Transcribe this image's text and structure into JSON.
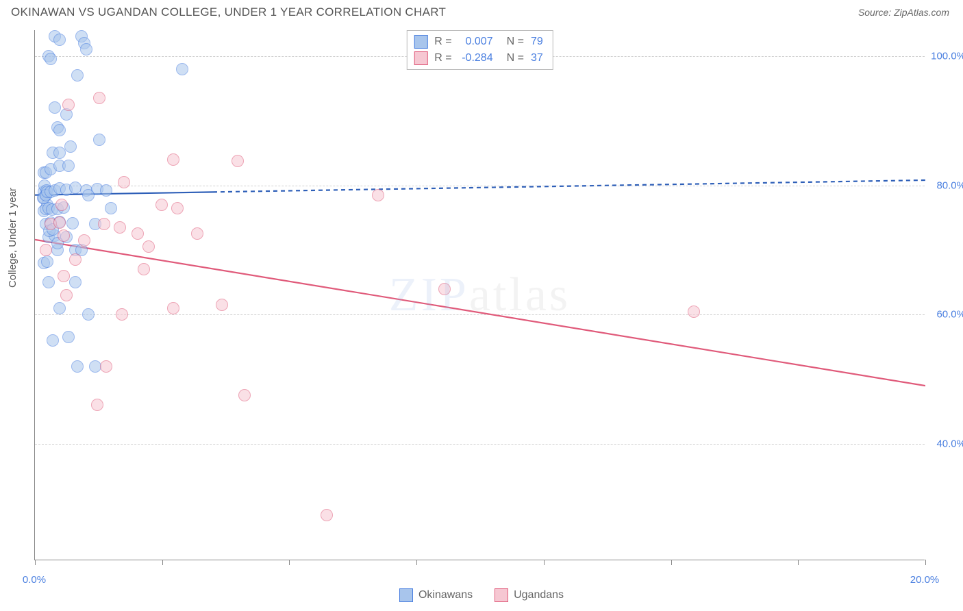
{
  "title": "OKINAWAN VS UGANDAN COLLEGE, UNDER 1 YEAR CORRELATION CHART",
  "source": "Source: ZipAtlas.com",
  "ylabel": "College, Under 1 year",
  "watermark_parts": [
    "ZIP",
    "atlas"
  ],
  "watermark_colors": [
    "#9cb8e6",
    "#c0c0c0"
  ],
  "chart": {
    "type": "scatter",
    "background_color": "#ffffff",
    "grid_color": "#d0d0d0",
    "axis_color": "#888888",
    "axis_label_color": "#555555",
    "tick_label_color": "#4a7fe0",
    "tick_fontsize": 15,
    "label_fontsize": 15,
    "title_fontsize": 17,
    "xlim": [
      0,
      20
    ],
    "ylim": [
      22,
      104
    ],
    "x_ticks": [
      0,
      2.86,
      5.71,
      8.57,
      11.43,
      14.29,
      17.14,
      20
    ],
    "x_tick_labels": [
      "0.0%",
      "",
      "",
      "",
      "",
      "",
      "",
      "20.0%"
    ],
    "y_ticks": [
      40,
      60,
      80,
      100
    ],
    "y_tick_labels": [
      "40.0%",
      "60.0%",
      "80.0%",
      "100.0%"
    ],
    "marker_radius": 9,
    "marker_opacity": 0.55,
    "marker_stroke_width": 1.2,
    "series": [
      {
        "name": "Okinawans",
        "fill": "#a8c5ec",
        "stroke": "#4a7fe0",
        "trend": {
          "x0": 0,
          "y0": 78.5,
          "x1": 20,
          "y1": 80.8,
          "solid_until_x": 4.0,
          "color": "#2e5fb8",
          "width": 2.2,
          "dash": "6 5"
        },
        "R": "0.007",
        "N": "79",
        "points": [
          [
            0.18,
            78
          ],
          [
            0.2,
            79
          ],
          [
            0.22,
            80
          ],
          [
            0.24,
            78.5
          ],
          [
            0.26,
            79.2
          ],
          [
            0.2,
            82
          ],
          [
            0.28,
            77
          ],
          [
            0.3,
            100
          ],
          [
            0.35,
            99.5
          ],
          [
            0.45,
            103
          ],
          [
            0.55,
            102.5
          ],
          [
            1.05,
            103
          ],
          [
            1.1,
            102
          ],
          [
            1.15,
            101
          ],
          [
            0.95,
            97
          ],
          [
            0.45,
            92
          ],
          [
            0.7,
            91
          ],
          [
            0.5,
            89
          ],
          [
            0.55,
            88.5
          ],
          [
            0.4,
            85
          ],
          [
            0.55,
            85
          ],
          [
            0.8,
            86
          ],
          [
            1.45,
            87
          ],
          [
            0.25,
            82
          ],
          [
            0.35,
            82.5
          ],
          [
            0.55,
            83
          ],
          [
            0.75,
            83
          ],
          [
            0.2,
            78
          ],
          [
            0.24,
            78.5
          ],
          [
            0.28,
            79
          ],
          [
            0.35,
            79
          ],
          [
            0.45,
            79.2
          ],
          [
            0.55,
            79.5
          ],
          [
            0.7,
            79.3
          ],
          [
            0.9,
            79.6
          ],
          [
            1.15,
            79.2
          ],
          [
            1.4,
            79.4
          ],
          [
            1.6,
            79.2
          ],
          [
            1.2,
            78.5
          ],
          [
            0.2,
            76
          ],
          [
            0.24,
            76.3
          ],
          [
            0.3,
            76.5
          ],
          [
            0.38,
            76.2
          ],
          [
            0.5,
            76.4
          ],
          [
            0.65,
            76.6
          ],
          [
            0.25,
            74
          ],
          [
            0.35,
            74.2
          ],
          [
            0.55,
            74.3
          ],
          [
            0.85,
            74.1
          ],
          [
            1.35,
            74
          ],
          [
            1.7,
            76.5
          ],
          [
            0.3,
            72
          ],
          [
            0.45,
            72.2
          ],
          [
            0.7,
            72
          ],
          [
            0.5,
            70
          ],
          [
            0.9,
            70
          ],
          [
            1.05,
            70
          ],
          [
            0.2,
            68
          ],
          [
            0.28,
            68.2
          ],
          [
            0.32,
            73
          ],
          [
            0.4,
            73.2
          ],
          [
            0.5,
            71
          ],
          [
            0.3,
            65
          ],
          [
            0.9,
            65
          ],
          [
            1.2,
            60
          ],
          [
            0.55,
            61
          ],
          [
            0.4,
            56
          ],
          [
            0.75,
            56.5
          ],
          [
            0.95,
            52
          ],
          [
            1.35,
            52
          ],
          [
            3.3,
            98
          ]
        ]
      },
      {
        "name": "Ugandans",
        "fill": "#f6c7d2",
        "stroke": "#e05a7a",
        "trend": {
          "x0": 0,
          "y0": 71.6,
          "x1": 20,
          "y1": 49.0,
          "solid_until_x": 20,
          "color": "#e05a7a",
          "width": 2.2
        },
        "R": "-0.284",
        "N": "37",
        "points": [
          [
            1.45,
            93.5
          ],
          [
            0.75,
            92.5
          ],
          [
            3.1,
            84
          ],
          [
            4.55,
            83.8
          ],
          [
            2.0,
            80.5
          ],
          [
            0.6,
            77
          ],
          [
            2.85,
            77
          ],
          [
            3.2,
            76.5
          ],
          [
            7.7,
            78.5
          ],
          [
            0.35,
            74
          ],
          [
            0.55,
            74.2
          ],
          [
            1.55,
            74
          ],
          [
            0.65,
            72.2
          ],
          [
            1.9,
            73.5
          ],
          [
            2.3,
            72.5
          ],
          [
            3.65,
            72.5
          ],
          [
            0.25,
            70
          ],
          [
            1.1,
            71.5
          ],
          [
            0.9,
            68.5
          ],
          [
            2.55,
            70.5
          ],
          [
            0.65,
            66
          ],
          [
            2.45,
            67
          ],
          [
            0.7,
            63
          ],
          [
            9.2,
            64
          ],
          [
            1.95,
            60
          ],
          [
            3.1,
            61
          ],
          [
            4.2,
            61.5
          ],
          [
            14.8,
            60.5
          ],
          [
            1.6,
            52
          ],
          [
            4.7,
            47.5
          ],
          [
            1.4,
            46
          ],
          [
            6.55,
            29
          ]
        ]
      }
    ]
  },
  "legend_top": [
    {
      "swatch_fill": "#a8c5ec",
      "swatch_stroke": "#4a7fe0",
      "R_label": "R =",
      "R_val": "0.007",
      "N_label": "N =",
      "N_val": "79"
    },
    {
      "swatch_fill": "#f6c7d2",
      "swatch_stroke": "#e05a7a",
      "R_label": "R =",
      "R_val": "-0.284",
      "N_label": "N =",
      "N_val": "37"
    }
  ],
  "legend_bottom": [
    {
      "swatch_fill": "#a8c5ec",
      "swatch_stroke": "#4a7fe0",
      "label": "Okinawans"
    },
    {
      "swatch_fill": "#f6c7d2",
      "swatch_stroke": "#e05a7a",
      "label": "Ugandans"
    }
  ]
}
